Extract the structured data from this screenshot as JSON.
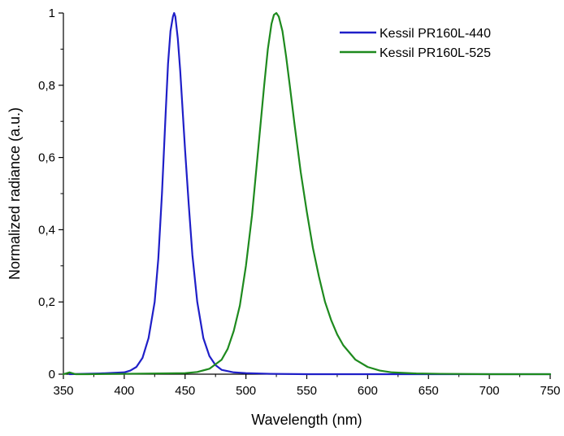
{
  "chart_data": {
    "type": "line",
    "xlabel": "Wavelength (nm)",
    "ylabel": "Normalized radiance (a.u.)",
    "xlim": [
      350,
      750
    ],
    "ylim": [
      0,
      1
    ],
    "x_ticks": [
      350,
      400,
      450,
      500,
      550,
      600,
      650,
      700,
      750
    ],
    "y_ticks": [
      0,
      0.2,
      0.4,
      0.6,
      0.8,
      1
    ],
    "y_tick_labels": [
      "0",
      "0,2",
      "0,4",
      "0,6",
      "0,8",
      "1"
    ],
    "grid": false,
    "legend_position": "top-right",
    "series": [
      {
        "name": "Kessil PR160L-440",
        "color": "#1f1fc8",
        "x": [
          355,
          380,
          400,
          405,
          410,
          415,
          420,
          425,
          428,
          431,
          434,
          436,
          438,
          440,
          441,
          442,
          444,
          446,
          448,
          450,
          453,
          456,
          460,
          465,
          470,
          475,
          480,
          490,
          500,
          520,
          550,
          600,
          650,
          700,
          750
        ],
        "y": [
          0.0,
          0.002,
          0.005,
          0.01,
          0.02,
          0.045,
          0.1,
          0.2,
          0.32,
          0.5,
          0.72,
          0.86,
          0.95,
          0.99,
          1.0,
          0.99,
          0.93,
          0.84,
          0.73,
          0.62,
          0.47,
          0.33,
          0.2,
          0.1,
          0.05,
          0.025,
          0.012,
          0.005,
          0.003,
          0.001,
          0.0,
          0.0,
          0.0,
          0.0,
          0.0
        ]
      },
      {
        "name": "Kessil PR160L-525",
        "color": "#1e8a1e",
        "x": [
          350,
          355,
          360,
          370,
          400,
          450,
          460,
          470,
          480,
          485,
          490,
          495,
          500,
          505,
          510,
          515,
          518,
          521,
          523,
          525,
          527,
          530,
          533,
          536,
          540,
          545,
          550,
          555,
          560,
          565,
          570,
          575,
          580,
          590,
          600,
          610,
          620,
          640,
          660,
          700,
          750
        ],
        "y": [
          0.0,
          0.005,
          0.0,
          0.0,
          0.001,
          0.003,
          0.006,
          0.015,
          0.04,
          0.07,
          0.12,
          0.19,
          0.3,
          0.44,
          0.62,
          0.8,
          0.9,
          0.97,
          0.995,
          1.0,
          0.99,
          0.95,
          0.88,
          0.8,
          0.69,
          0.56,
          0.45,
          0.35,
          0.27,
          0.2,
          0.15,
          0.11,
          0.08,
          0.04,
          0.02,
          0.01,
          0.005,
          0.002,
          0.001,
          0.0,
          0.0
        ]
      }
    ]
  }
}
